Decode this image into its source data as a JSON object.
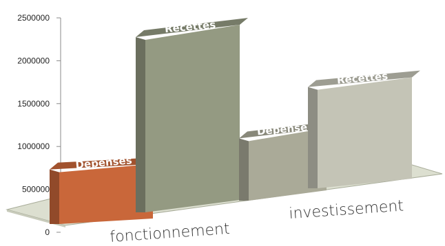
{
  "chart_data": {
    "type": "bar",
    "style": "3d",
    "categories": [
      "fonctionnement",
      "investissement"
    ],
    "series": [
      {
        "name": "Dépenses",
        "values": [
          700000,
          800000
        ],
        "colors": [
          "#c9673a",
          "#aaaa98"
        ]
      },
      {
        "name": "Recettes",
        "values": [
          2250000,
          1300000
        ],
        "colors": [
          "#949a82",
          "#c4c4b6"
        ]
      }
    ],
    "bar_labels": [
      "Dépenses",
      "Recettes",
      "Dépenses",
      "Recettes"
    ],
    "yticks": [
      "0",
      "500000",
      "1000000",
      "1500000",
      "2000000",
      "2500000"
    ],
    "ylim": [
      0,
      2500000
    ],
    "grid": false,
    "legend": "none",
    "floor_color": "#dcdfd0"
  }
}
